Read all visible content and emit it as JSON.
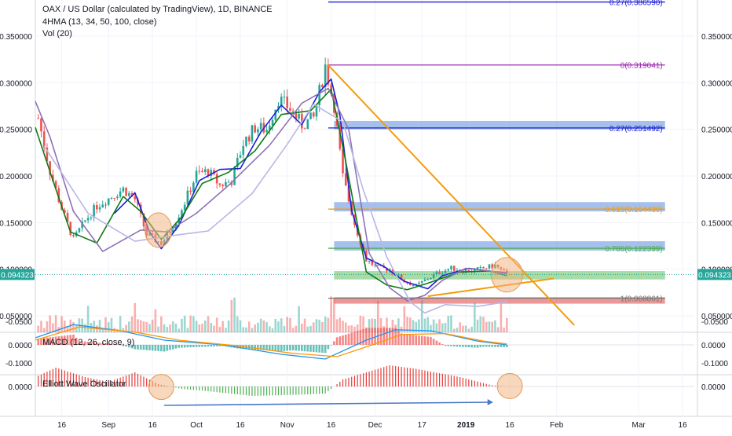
{
  "header": {
    "title": "OAX / US Dollar (calculated by TradingView), 1D, BINANCE",
    "indicator_hma": "4HMA (13, 34, 50, 100, close)",
    "indicator_vol": "Vol (20)"
  },
  "price_axis": {
    "ticks": [
      "0.350000",
      "0.300000",
      "0.250000",
      "0.200000",
      "0.150000",
      "0.100000",
      "0.050000"
    ],
    "current_price": "0.094323"
  },
  "macd": {
    "label": "MACD (12, 26, close, 9)",
    "ticks": [
      "0.0000",
      "-0.0500"
    ]
  },
  "ewo": {
    "label": "Elliott Wave Oscillator",
    "ticks": [
      "0.0000",
      "-0.1000"
    ]
  },
  "time_axis": {
    "ticks": [
      "16",
      "Sep",
      "16",
      "Oct",
      "16",
      "Nov",
      "16",
      "Dec",
      "17",
      "2019",
      "16",
      "Feb",
      "Mar",
      "16"
    ]
  },
  "fib_labels": [
    "0.27(0.386590)",
    "0(0.319041)",
    "0.27(0.251492)",
    "0.618(0.164430)",
    "0.786(0.122399)",
    "1(0.068861)"
  ],
  "colors": {
    "up": "#26a69a",
    "down": "#ef5350",
    "hma_blue": "#1c1fd6",
    "hma_green": "#0f7a17",
    "hma_purple": "#8e72b5",
    "hma_lav": "#b9b7e6",
    "trend": "#f59b0b",
    "fib_0": "#9c27b0",
    "fib_27": "#1c1fd6",
    "fib_618": "#f59b0b",
    "fib_786": "#4caf50",
    "fib_1": "#787878",
    "zone_blue": "#5b8ddd",
    "zone_green": "#5fbf5f",
    "zone_red": "#dd4444",
    "circle": "#f2b27a",
    "arrow": "#4a78c8"
  },
  "chart_data": {
    "type": "candlestick",
    "title": "OAX / US Dollar (calculated by TradingView), 1D, BINANCE",
    "xlabel": "",
    "ylabel": "",
    "ylim": [
      0.02,
      0.39
    ],
    "x_range": [
      "2018-08-07",
      "2019-03-20"
    ],
    "x_ticks": [
      "16",
      "Sep",
      "16",
      "Oct",
      "16",
      "Nov",
      "16",
      "Dec",
      "17",
      "2019",
      "16",
      "Feb",
      "Mar",
      "16"
    ],
    "price_path": [
      [
        "2018-08-08",
        0.262
      ],
      [
        "2018-08-12",
        0.205
      ],
      [
        "2018-08-16",
        0.165
      ],
      [
        "2018-08-20",
        0.132
      ],
      [
        "2018-08-24",
        0.152
      ],
      [
        "2018-08-28",
        0.168
      ],
      [
        "2018-09-02",
        0.178
      ],
      [
        "2018-09-06",
        0.186
      ],
      [
        "2018-09-10",
        0.175
      ],
      [
        "2018-09-14",
        0.137
      ],
      [
        "2018-09-19",
        0.128
      ],
      [
        "2018-09-23",
        0.146
      ],
      [
        "2018-09-27",
        0.172
      ],
      [
        "2018-10-01",
        0.202
      ],
      [
        "2018-10-05",
        0.205
      ],
      [
        "2018-10-09",
        0.19
      ],
      [
        "2018-10-13",
        0.195
      ],
      [
        "2018-10-17",
        0.235
      ],
      [
        "2018-10-21",
        0.252
      ],
      [
        "2018-10-25",
        0.25
      ],
      [
        "2018-10-29",
        0.283
      ],
      [
        "2018-11-02",
        0.272
      ],
      [
        "2018-11-06",
        0.255
      ],
      [
        "2018-11-10",
        0.262
      ],
      [
        "2018-11-14",
        0.318
      ],
      [
        "2018-11-17",
        0.276
      ],
      [
        "2018-11-20",
        0.199
      ],
      [
        "2018-11-24",
        0.149
      ],
      [
        "2018-11-28",
        0.11
      ],
      [
        "2018-12-02",
        0.101
      ],
      [
        "2018-12-06",
        0.1
      ],
      [
        "2018-12-11",
        0.087
      ],
      [
        "2018-12-15",
        0.082
      ],
      [
        "2018-12-19",
        0.09
      ],
      [
        "2018-12-23",
        0.097
      ],
      [
        "2018-12-27",
        0.101
      ],
      [
        "2019-01-01",
        0.098
      ],
      [
        "2019-01-06",
        0.1
      ],
      [
        "2019-01-11",
        0.104
      ],
      [
        "2019-01-15",
        0.094
      ]
    ],
    "hma_lines": [
      {
        "color": "blue",
        "points": [
          [
            "2018-09-03",
            0.16
          ],
          [
            "2018-09-10",
            0.182
          ],
          [
            "2018-09-15",
            0.14
          ],
          [
            "2018-09-19",
            0.122
          ],
          [
            "2018-09-25",
            0.147
          ],
          [
            "2018-10-02",
            0.195
          ],
          [
            "2018-10-09",
            0.207
          ],
          [
            "2018-10-16",
            0.208
          ],
          [
            "2018-10-23",
            0.247
          ],
          [
            "2018-10-30",
            0.276
          ],
          [
            "2018-11-06",
            0.255
          ],
          [
            "2018-11-12",
            0.29
          ],
          [
            "2018-11-16",
            0.304
          ],
          [
            "2018-11-19",
            0.265
          ],
          [
            "2018-11-23",
            0.163
          ],
          [
            "2018-11-28",
            0.112
          ],
          [
            "2018-12-04",
            0.103
          ],
          [
            "2018-12-11",
            0.087
          ],
          [
            "2018-12-19",
            0.079
          ],
          [
            "2018-12-24",
            0.093
          ],
          [
            "2019-01-02",
            0.101
          ],
          [
            "2019-01-09",
            0.098
          ],
          [
            "2019-01-15",
            0.096
          ]
        ]
      },
      {
        "color": "green",
        "points": [
          [
            "2018-08-07",
            0.252
          ],
          [
            "2018-08-13",
            0.195
          ],
          [
            "2018-08-19",
            0.14
          ],
          [
            "2018-08-28",
            0.128
          ],
          [
            "2018-09-06",
            0.178
          ],
          [
            "2018-09-12",
            0.162
          ],
          [
            "2018-09-19",
            0.132
          ],
          [
            "2018-09-26",
            0.156
          ],
          [
            "2018-10-03",
            0.192
          ],
          [
            "2018-10-12",
            0.204
          ],
          [
            "2018-10-21",
            0.227
          ],
          [
            "2018-10-30",
            0.266
          ],
          [
            "2018-11-09",
            0.27
          ],
          [
            "2018-11-16",
            0.293
          ],
          [
            "2018-11-21",
            0.215
          ],
          [
            "2018-11-28",
            0.097
          ],
          [
            "2018-12-05",
            0.083
          ],
          [
            "2018-12-12",
            0.078
          ],
          [
            "2018-12-19",
            0.085
          ],
          [
            "2018-12-30",
            0.097
          ],
          [
            "2019-01-09",
            0.098
          ],
          [
            "2019-01-15",
            0.093
          ]
        ]
      },
      {
        "color": "purple",
        "points": [
          [
            "2018-08-07",
            0.28
          ],
          [
            "2018-08-12",
            0.242
          ],
          [
            "2018-08-20",
            0.162
          ],
          [
            "2018-08-30",
            0.119
          ],
          [
            "2018-09-12",
            0.142
          ],
          [
            "2018-09-21",
            0.14
          ],
          [
            "2018-10-01",
            0.16
          ],
          [
            "2018-10-12",
            0.19
          ],
          [
            "2018-10-26",
            0.233
          ],
          [
            "2018-11-06",
            0.278
          ],
          [
            "2018-11-15",
            0.294
          ],
          [
            "2018-11-22",
            0.25
          ],
          [
            "2018-11-29",
            0.117
          ],
          [
            "2018-12-06",
            0.08
          ],
          [
            "2018-12-12",
            0.066
          ],
          [
            "2018-12-18",
            0.072
          ],
          [
            "2018-12-24",
            0.088
          ],
          [
            "2019-01-01",
            0.101
          ],
          [
            "2019-01-09",
            0.098
          ],
          [
            "2019-01-15",
            0.095
          ]
        ]
      },
      {
        "color": "lavender",
        "points": [
          [
            "2018-08-10",
            0.232
          ],
          [
            "2018-08-25",
            0.16
          ],
          [
            "2018-09-10",
            0.13
          ],
          [
            "2018-09-25",
            0.137
          ],
          [
            "2018-10-05",
            0.141
          ],
          [
            "2018-10-20",
            0.181
          ],
          [
            "2018-11-01",
            0.234
          ],
          [
            "2018-11-10",
            0.277
          ],
          [
            "2018-11-20",
            0.258
          ],
          [
            "2018-11-27",
            0.185
          ],
          [
            "2018-12-05",
            0.113
          ],
          [
            "2018-12-13",
            0.065
          ],
          [
            "2018-12-18",
            0.053
          ],
          [
            "2018-12-25",
            0.062
          ],
          [
            "2019-01-05",
            0.06
          ],
          [
            "2019-01-15",
            0.065
          ]
        ]
      }
    ],
    "fib_levels": [
      {
        "label": "0.27(0.386590)",
        "value": 0.38659
      },
      {
        "label": "0(0.319041)",
        "value": 0.319041
      },
      {
        "label": "0.27(0.251492)",
        "value": 0.251492
      },
      {
        "label": "0.618(0.164430)",
        "value": 0.16443
      },
      {
        "label": "0.786(0.122399)",
        "value": 0.122399
      },
      {
        "label": "1(0.068861)",
        "value": 0.068861
      }
    ],
    "zones": [
      {
        "color": "blue",
        "from": "2018-11-17",
        "to": "2019-03-10",
        "y": [
          0.25,
          0.259
        ]
      },
      {
        "color": "blue",
        "from": "2018-11-17",
        "to": "2019-03-10",
        "y": [
          0.162,
          0.172
        ]
      },
      {
        "color": "blue",
        "from": "2018-11-17",
        "to": "2019-03-10",
        "y": [
          0.12,
          0.13
        ]
      },
      {
        "color": "green",
        "from": "2018-11-17",
        "to": "2019-03-10",
        "y": [
          0.089,
          0.098
        ]
      },
      {
        "color": "red",
        "from": "2018-11-17",
        "to": "2019-03-10",
        "y": [
          0.063,
          0.07
        ]
      }
    ],
    "trendlines": [
      {
        "from": [
          "2018-11-15",
          0.319
        ],
        "to": [
          "2019-02-07",
          0.04
        ]
      },
      {
        "from": [
          "2018-12-19",
          0.071
        ],
        "to": [
          "2019-01-31",
          0.09
        ]
      }
    ],
    "macd": {
      "yticks": [
        "0.0000",
        "-0.0500"
      ],
      "macd_line": [
        [
          "2018-08-07",
          -0.015
        ],
        [
          "2018-08-20",
          -0.043
        ],
        [
          "2018-09-05",
          -0.03
        ],
        [
          "2018-09-20",
          -0.01
        ],
        [
          "2018-10-10",
          0.0
        ],
        [
          "2018-10-30",
          0.02
        ],
        [
          "2018-11-14",
          0.03
        ],
        [
          "2018-11-28",
          -0.01
        ],
        [
          "2018-12-08",
          -0.032
        ],
        [
          "2018-12-20",
          -0.03
        ],
        [
          "2019-01-05",
          -0.008
        ],
        [
          "2019-01-15",
          0.0
        ]
      ],
      "signal_line": [
        [
          "2018-08-07",
          -0.01
        ],
        [
          "2018-08-22",
          -0.038
        ],
        [
          "2018-09-10",
          -0.027
        ],
        [
          "2018-09-25",
          -0.01
        ],
        [
          "2018-10-15",
          0.002
        ],
        [
          "2018-11-03",
          0.018
        ],
        [
          "2018-11-18",
          0.025
        ],
        [
          "2018-11-30",
          0.0
        ],
        [
          "2018-12-10",
          -0.022
        ],
        [
          "2018-12-25",
          -0.024
        ],
        [
          "2019-01-07",
          -0.008
        ],
        [
          "2019-01-15",
          -0.002
        ]
      ]
    },
    "ewo": {
      "yticks": [
        "0.0000",
        "-0.1000"
      ],
      "bars_path": [
        [
          "2018-08-07",
          -0.04
        ],
        [
          "2018-08-14",
          -0.08
        ],
        [
          "2018-08-24",
          -0.04
        ],
        [
          "2018-09-01",
          -0.02
        ],
        [
          "2018-09-10",
          -0.06
        ],
        [
          "2018-09-18",
          -0.01
        ],
        [
          "2018-09-26",
          0.01
        ],
        [
          "2018-10-05",
          0.02
        ],
        [
          "2018-10-20",
          0.04
        ],
        [
          "2018-11-05",
          0.035
        ],
        [
          "2018-11-14",
          0.03
        ],
        [
          "2018-11-20",
          -0.03
        ],
        [
          "2018-12-06",
          -0.09
        ],
        [
          "2018-12-15",
          -0.075
        ],
        [
          "2018-12-30",
          -0.04
        ],
        [
          "2019-01-10",
          -0.005
        ],
        [
          "2019-01-15",
          0.0
        ]
      ]
    }
  }
}
